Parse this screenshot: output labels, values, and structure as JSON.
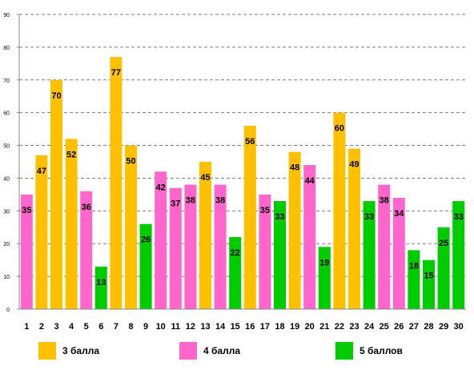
{
  "chart_data": {
    "type": "bar",
    "categories": [
      "1",
      "2",
      "3",
      "4",
      "5",
      "6",
      "7",
      "8",
      "9",
      "10",
      "11",
      "12",
      "13",
      "14",
      "15",
      "16",
      "17",
      "18",
      "19",
      "20",
      "21",
      "22",
      "23",
      "24",
      "25",
      "26",
      "27",
      "28",
      "29",
      "30"
    ],
    "values": [
      35,
      47,
      70,
      52,
      36,
      13,
      77,
      50,
      26,
      42,
      37,
      38,
      45,
      38,
      22,
      56,
      35,
      33,
      48,
      44,
      19,
      60,
      49,
      33,
      38,
      34,
      18,
      15,
      25,
      33
    ],
    "groups": [
      1,
      0,
      0,
      0,
      1,
      2,
      0,
      0,
      2,
      1,
      1,
      1,
      0,
      1,
      2,
      0,
      1,
      2,
      0,
      1,
      2,
      0,
      0,
      2,
      1,
      1,
      2,
      2,
      2,
      2
    ],
    "yticks": [
      "0",
      "10",
      "20",
      "30",
      "40",
      "50",
      "60",
      "70",
      "80",
      "90"
    ],
    "ylim": [
      0,
      90
    ],
    "grid": true,
    "legend_position": "bottom",
    "legend": [
      {
        "label": "3 балла",
        "color": "#FFC000"
      },
      {
        "label": "4 балла",
        "color": "#FF66CC"
      },
      {
        "label": "5 баллов",
        "color": "#00CC00"
      }
    ]
  }
}
